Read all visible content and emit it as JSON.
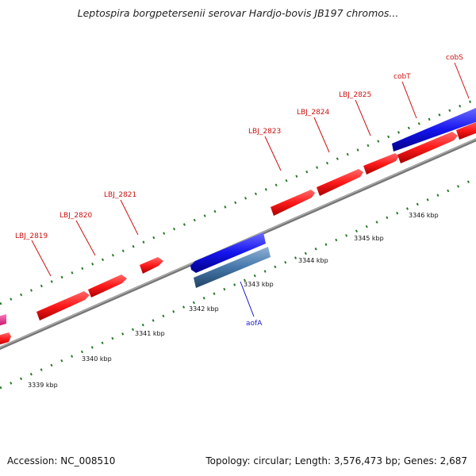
{
  "map": {
    "title": "Leptospira borgpetersenii serovar Hardjo-bovis JB197 chromos...",
    "accession": "Accession: NC_008510",
    "summary": "Topology: circular; Length: 3,576,473 bp; Genes: 2,687"
  },
  "genes": {
    "LBJ_2819": "LBJ_2819",
    "LBJ_2820": "LBJ_2820",
    "LBJ_2821": "LBJ_2821",
    "LBJ_2823": "LBJ_2823",
    "LBJ_2824": "LBJ_2824",
    "LBJ_2825": "LBJ_2825",
    "cobT": "cobT",
    "cobS": "cobS",
    "aofA": "aofA"
  },
  "scale": {
    "kbp_3339": "3339 kbp",
    "kbp_3340": "3340 kbp",
    "kbp_3341": "3341 kbp",
    "kbp_3342": "3342 kbp",
    "kbp_3343": "3343 kbp",
    "kbp_3344": "3344 kbp",
    "kbp_3345": "3345 kbp",
    "kbp_3346": "3346 kbp"
  },
  "colors": {
    "forward_gene": "#ff1a1a",
    "reverse_gene": "#1414ee",
    "rna_gene": "#4477aa",
    "other_gene": "#ee2288",
    "backbone": "#777777",
    "ticks": "#2a7a2a"
  }
}
